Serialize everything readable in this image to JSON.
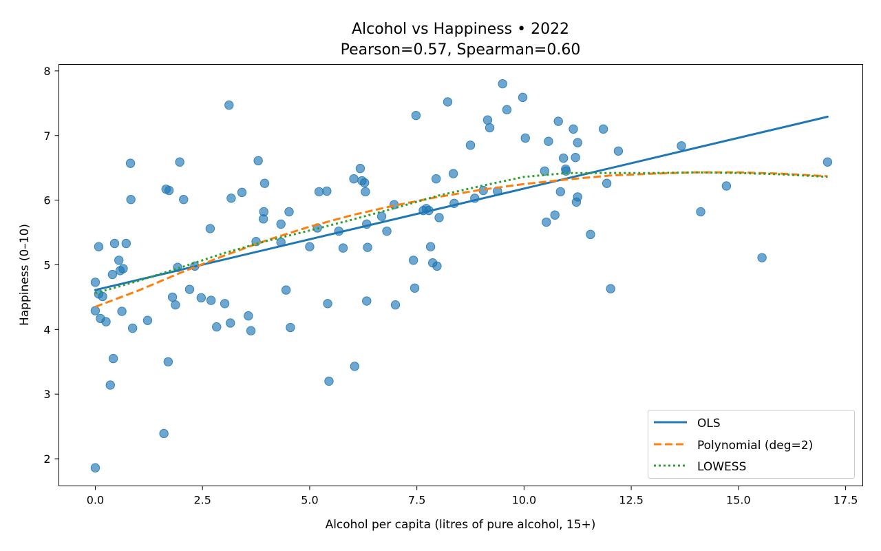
{
  "chart_data": {
    "type": "scatter",
    "title": "Alcohol vs Happiness • 2022",
    "subtitle": "Pearson=0.57, Spearman=0.60",
    "xlabel": "Alcohol per capita (litres of pure alcohol, 15+)",
    "ylabel": "Happiness (0–10)",
    "xlim": [
      -0.85,
      17.9
    ],
    "ylim": [
      1.58,
      8.1
    ],
    "xticks": [
      "0.0",
      "2.5",
      "5.0",
      "7.5",
      "10.0",
      "12.5",
      "15.0",
      "17.5"
    ],
    "xtick_values": [
      0,
      2.5,
      5,
      7.5,
      10,
      12.5,
      15,
      17.5
    ],
    "yticks": [
      "2",
      "3",
      "4",
      "5",
      "6",
      "7",
      "8"
    ],
    "ytick_values": [
      2,
      3,
      4,
      5,
      6,
      7,
      8
    ],
    "grid": false,
    "legend_position": "lower-right",
    "point_color": "#1f77b4",
    "points": [
      [
        0.0,
        1.86
      ],
      [
        0.0,
        4.29
      ],
      [
        0.0,
        4.73
      ],
      [
        0.08,
        5.28
      ],
      [
        0.08,
        4.55
      ],
      [
        0.12,
        4.17
      ],
      [
        0.17,
        4.51
      ],
      [
        0.25,
        4.12
      ],
      [
        0.35,
        3.14
      ],
      [
        0.4,
        4.85
      ],
      [
        0.42,
        3.55
      ],
      [
        0.45,
        5.33
      ],
      [
        0.55,
        5.07
      ],
      [
        0.58,
        4.91
      ],
      [
        0.62,
        4.28
      ],
      [
        0.65,
        4.94
      ],
      [
        0.72,
        5.33
      ],
      [
        0.82,
        6.57
      ],
      [
        0.83,
        6.01
      ],
      [
        0.87,
        4.02
      ],
      [
        1.22,
        4.14
      ],
      [
        1.6,
        2.39
      ],
      [
        1.65,
        6.17
      ],
      [
        1.7,
        3.5
      ],
      [
        1.72,
        6.15
      ],
      [
        1.8,
        4.5
      ],
      [
        1.87,
        4.38
      ],
      [
        1.92,
        4.96
      ],
      [
        1.97,
        6.59
      ],
      [
        2.06,
        6.01
      ],
      [
        2.2,
        4.62
      ],
      [
        2.32,
        4.98
      ],
      [
        2.47,
        4.49
      ],
      [
        2.68,
        5.56
      ],
      [
        2.7,
        4.45
      ],
      [
        2.83,
        4.04
      ],
      [
        3.02,
        4.4
      ],
      [
        3.12,
        7.47
      ],
      [
        3.15,
        4.1
      ],
      [
        3.17,
        6.03
      ],
      [
        3.42,
        6.12
      ],
      [
        3.57,
        4.21
      ],
      [
        3.63,
        3.98
      ],
      [
        3.75,
        5.36
      ],
      [
        3.8,
        6.61
      ],
      [
        3.92,
        5.71
      ],
      [
        3.93,
        5.82
      ],
      [
        3.95,
        6.26
      ],
      [
        4.33,
        5.63
      ],
      [
        4.33,
        5.35
      ],
      [
        4.45,
        4.61
      ],
      [
        4.52,
        5.82
      ],
      [
        4.55,
        4.03
      ],
      [
        5.0,
        5.28
      ],
      [
        5.18,
        5.57
      ],
      [
        5.22,
        6.13
      ],
      [
        5.4,
        6.14
      ],
      [
        5.42,
        4.4
      ],
      [
        5.45,
        3.2
      ],
      [
        5.68,
        5.52
      ],
      [
        5.78,
        5.26
      ],
      [
        6.03,
        6.33
      ],
      [
        6.05,
        3.43
      ],
      [
        6.18,
        6.49
      ],
      [
        6.22,
        6.3
      ],
      [
        6.28,
        6.27
      ],
      [
        6.3,
        6.13
      ],
      [
        6.33,
        4.44
      ],
      [
        6.33,
        5.63
      ],
      [
        6.35,
        5.27
      ],
      [
        6.68,
        5.75
      ],
      [
        6.8,
        5.52
      ],
      [
        6.97,
        5.93
      ],
      [
        7.0,
        4.38
      ],
      [
        7.42,
        5.07
      ],
      [
        7.45,
        4.64
      ],
      [
        7.48,
        7.31
      ],
      [
        7.65,
        5.84
      ],
      [
        7.72,
        5.87
      ],
      [
        7.78,
        5.84
      ],
      [
        7.82,
        5.28
      ],
      [
        7.87,
        5.03
      ],
      [
        7.95,
        6.33
      ],
      [
        7.97,
        4.98
      ],
      [
        8.02,
        5.73
      ],
      [
        8.22,
        7.52
      ],
      [
        8.35,
        6.41
      ],
      [
        8.37,
        5.95
      ],
      [
        8.75,
        6.85
      ],
      [
        8.85,
        6.03
      ],
      [
        9.05,
        6.15
      ],
      [
        9.15,
        7.24
      ],
      [
        9.2,
        7.12
      ],
      [
        9.38,
        6.14
      ],
      [
        9.5,
        7.8
      ],
      [
        9.6,
        7.4
      ],
      [
        9.97,
        7.59
      ],
      [
        10.03,
        6.96
      ],
      [
        10.48,
        6.45
      ],
      [
        10.52,
        5.66
      ],
      [
        10.57,
        6.91
      ],
      [
        10.72,
        5.77
      ],
      [
        10.8,
        7.22
      ],
      [
        10.85,
        6.13
      ],
      [
        10.92,
        6.65
      ],
      [
        10.97,
        6.48
      ],
      [
        10.98,
        6.45
      ],
      [
        11.15,
        7.1
      ],
      [
        11.2,
        6.66
      ],
      [
        11.22,
        5.97
      ],
      [
        11.25,
        6.05
      ],
      [
        11.25,
        6.89
      ],
      [
        11.55,
        5.47
      ],
      [
        11.85,
        7.1
      ],
      [
        11.93,
        6.26
      ],
      [
        12.02,
        4.63
      ],
      [
        12.2,
        6.76
      ],
      [
        13.67,
        6.84
      ],
      [
        14.12,
        5.82
      ],
      [
        14.72,
        6.22
      ],
      [
        15.55,
        5.11
      ],
      [
        17.08,
        6.59
      ]
    ],
    "series": [
      {
        "name": "OLS",
        "color": "#1f77b4",
        "style": "solid",
        "x": [
          0.0,
          17.08
        ],
        "y": [
          4.61,
          7.29
        ]
      },
      {
        "name": "Polynomial (deg=2)",
        "color": "#ff7f0e",
        "style": "dashed",
        "x": [
          0.0,
          1,
          2,
          3,
          4,
          5,
          6,
          7,
          8,
          9,
          10,
          11,
          12,
          13,
          14,
          15,
          16,
          17.08
        ],
        "y": [
          4.35,
          4.6,
          4.88,
          5.14,
          5.38,
          5.59,
          5.77,
          5.92,
          6.05,
          6.16,
          6.25,
          6.32,
          6.38,
          6.41,
          6.43,
          6.43,
          6.41,
          6.37
        ]
      },
      {
        "name": "LOWESS",
        "color": "#2ca02c",
        "style": "dotted",
        "x": [
          0.0,
          1,
          2,
          3,
          4,
          5,
          6,
          7,
          8,
          9,
          10,
          11,
          12,
          13,
          14,
          15,
          16,
          17.08
        ],
        "y": [
          4.56,
          4.75,
          4.96,
          5.18,
          5.37,
          5.53,
          5.7,
          5.88,
          6.07,
          6.22,
          6.36,
          6.42,
          6.42,
          6.42,
          6.43,
          6.42,
          6.4,
          6.36
        ]
      }
    ]
  }
}
